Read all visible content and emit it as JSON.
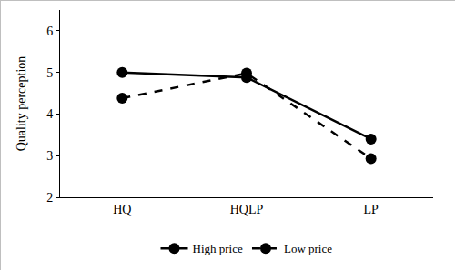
{
  "chart_data": {
    "type": "line",
    "categories": [
      "HQ",
      "HQLP",
      "LP"
    ],
    "y_label": "Quality perception",
    "series": [
      {
        "name": "High price",
        "color": "#000000",
        "values": [
          5.0,
          4.88,
          3.4
        ],
        "line_style": "solid",
        "marker": "circle"
      },
      {
        "name": "Low price",
        "color": "#000000",
        "values": [
          4.38,
          4.98,
          2.93
        ],
        "line_style": "dash",
        "marker": "circle"
      }
    ],
    "ylim": [
      2,
      6.5
    ],
    "yticks": [
      2,
      3,
      4,
      5,
      6
    ],
    "grid": false,
    "legend": "bottom"
  }
}
